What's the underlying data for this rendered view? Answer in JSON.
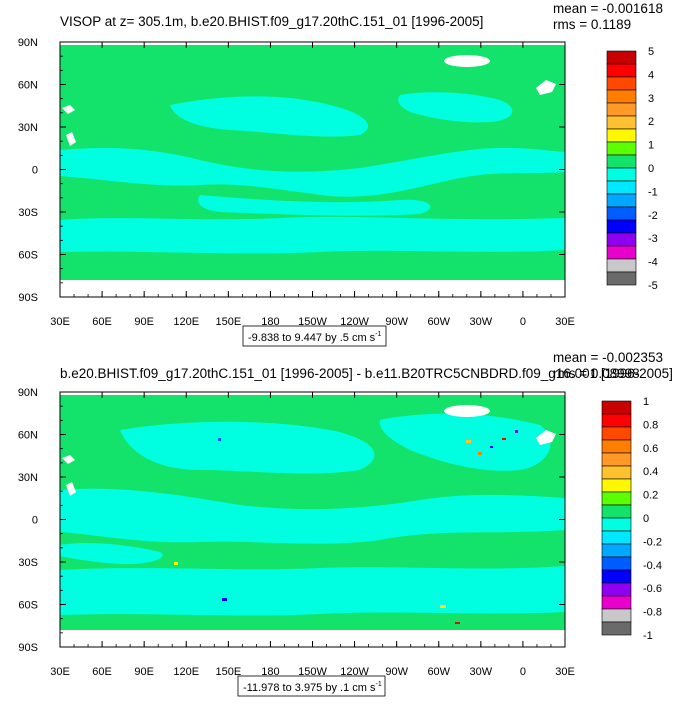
{
  "colors": {
    "ocean_main": "#14e36b",
    "ocean_alt": "#00ffe1",
    "land": "#ffffff",
    "frame": "#000000"
  },
  "chart_data": [
    {
      "type": "heatmap",
      "title": "VISOP at z= 305.1m, b.e20.BHIST.f09_g17.20thC.151_01 [1996-2005]",
      "stats": {
        "mean": "mean = -0.001618",
        "rms": "rms = 0.1189"
      },
      "range_label": "-9.838 to 9.447 by .5 cm s",
      "range_exp": "-1",
      "x_ticks": [
        "30E",
        "60E",
        "90E",
        "120E",
        "150E",
        "180",
        "150W",
        "120W",
        "90W",
        "60W",
        "30W",
        "0",
        "30E"
      ],
      "y_ticks": [
        "90N",
        "60N",
        "30N",
        "0",
        "30S",
        "60S",
        "90S"
      ],
      "colorbar": {
        "labels": [
          "5",
          "4",
          "3",
          "2",
          "1",
          "0",
          "-1",
          "-2",
          "-3",
          "-4",
          "-5"
        ],
        "colors": [
          "#c80000",
          "#ff0000",
          "#ff4800",
          "#ff7d00",
          "#ff9a28",
          "#ffc12f",
          "#fff800",
          "#5bff00",
          "#14e36b",
          "#00ffe1",
          "#00e8ff",
          "#00a8ff",
          "#005dff",
          "#0000ff",
          "#8f00f1",
          "#ea00cd",
          "#c8c8c8",
          "#6a6a6a"
        ]
      }
    },
    {
      "type": "heatmap",
      "title": "b.e20.BHIST.f09_g17.20thC.151_01 [1996-2005] - b.e11.B20TRC5CNBDRD.f09_g16.001 [1996-2005]",
      "stats": {
        "mean": "mean = -0.002353",
        "rms": "rms = 0.08998"
      },
      "range_label": "-11.978 to 3.975 by .1 cm s",
      "range_exp": "-1",
      "x_ticks": [
        "30E",
        "60E",
        "90E",
        "120E",
        "150E",
        "180",
        "150W",
        "120W",
        "90W",
        "60W",
        "30W",
        "0",
        "30E"
      ],
      "y_ticks": [
        "90N",
        "60N",
        "30N",
        "0",
        "30S",
        "60S",
        "90S"
      ],
      "colorbar": {
        "labels": [
          "1",
          "0.8",
          "0.6",
          "0.4",
          "0.2",
          "0",
          "-0.2",
          "-0.4",
          "-0.6",
          "-0.8",
          "-1"
        ],
        "colors": [
          "#c80000",
          "#ff0000",
          "#ff4800",
          "#ff7d00",
          "#ff9a28",
          "#ffc12f",
          "#fff800",
          "#5bff00",
          "#14e36b",
          "#00ffe1",
          "#00e8ff",
          "#00a8ff",
          "#005dff",
          "#0000ff",
          "#8f00f1",
          "#ea00cd",
          "#c8c8c8",
          "#6a6a6a"
        ]
      }
    }
  ]
}
